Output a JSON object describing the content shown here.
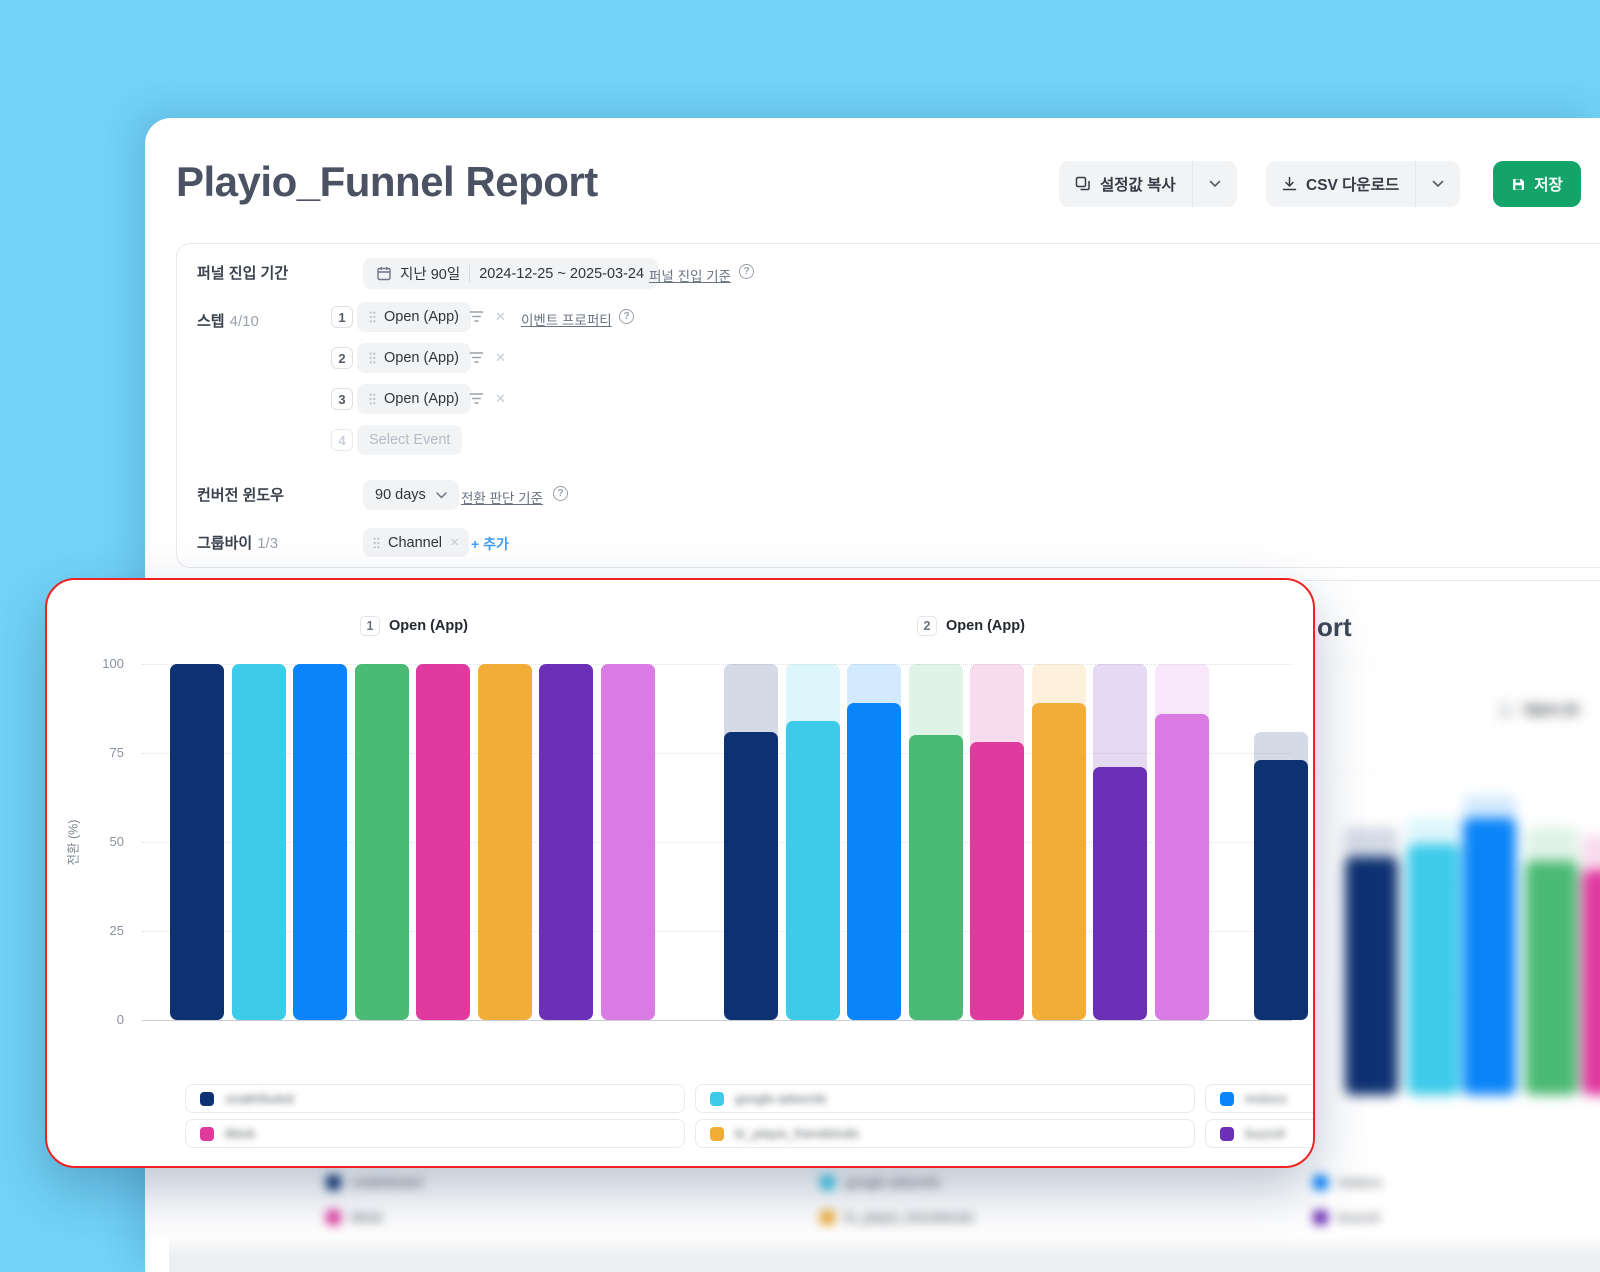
{
  "app": {
    "title": "Playio_Funnel Report"
  },
  "toolbar": {
    "copy_settings": "설정값 복사",
    "csv_download": "CSV 다운로드",
    "save": "저장"
  },
  "filters": {
    "period": {
      "label": "퍼널 진입 기간",
      "preset": "지난 90일",
      "range": "2024-12-25 ~ 2025-03-24",
      "criteria_link": "퍼널 진입 기준"
    },
    "steps": {
      "label": "스텝",
      "count": "4/10",
      "items": [
        {
          "num": "1",
          "event": "Open (App)",
          "property_link": "이벤트 프로퍼티",
          "placeholder": false
        },
        {
          "num": "2",
          "event": "Open (App)",
          "placeholder": false
        },
        {
          "num": "3",
          "event": "Open (App)",
          "placeholder": false
        },
        {
          "num": "4",
          "event": "Select Event",
          "placeholder": true
        }
      ]
    },
    "conversion": {
      "label": "컨버전 윈도우",
      "value": "90 days",
      "criteria_link": "전환 판단 기준"
    },
    "groupby": {
      "label": "그룹바이",
      "count": "1/3",
      "chip": "Channel",
      "add_link": "+ 추가"
    }
  },
  "chart_data": {
    "type": "bar",
    "ylabel": "전환 (%)",
    "ylim": [
      0,
      100
    ],
    "yticks": [
      100,
      75,
      50,
      25,
      0
    ],
    "grid": "horizontal-dotted",
    "legend_position": "bottom",
    "step_groups": [
      {
        "num": "1",
        "label": "Open (App)"
      },
      {
        "num": "2",
        "label": "Open (App)"
      }
    ],
    "channels": [
      {
        "name": "unattributed",
        "color": "#0E3172",
        "step1": 100,
        "step2": 81
      },
      {
        "name": "google.adwords",
        "color": "#3DCBEA",
        "step1": 100,
        "step2": 84
      },
      {
        "name": "moloco",
        "color": "#0A84F8",
        "step1": 100,
        "step2": 89
      },
      {
        "name": "",
        "color": "#4BBA74",
        "step1": 100,
        "step2": 80
      },
      {
        "name": "tiktok",
        "color": "#E03A9F",
        "step1": 100,
        "step2": 78
      },
      {
        "name": "kr_playio_friendsholic",
        "color": "#F1AD38",
        "step1": 100,
        "step2": 89
      },
      {
        "name": "buzzvil",
        "color": "#6B30B6",
        "step1": 100,
        "step2": 71
      },
      {
        "name": "",
        "color": "#D97BE3",
        "step1": 100,
        "step2": 86
      }
    ],
    "partial_step3": {
      "channel": "unattributed",
      "color": "#0E3172",
      "background_value": 81,
      "value": 73
    }
  },
  "legend": {
    "rows": [
      [
        {
          "label": "unattributed",
          "color": "#0E3172"
        },
        {
          "label": "google.adwords",
          "color": "#3DCBEA"
        },
        {
          "label": "moloco",
          "color": "#0A84F8"
        }
      ],
      [
        {
          "label": "tiktok",
          "color": "#E03A9F"
        },
        {
          "label": "kr_playio_friendsholic",
          "color": "#F1AD38"
        },
        {
          "label": "buzzvil",
          "color": "#6B30B6"
        }
      ]
    ]
  },
  "background_page": {
    "heading_fragment": "ort",
    "step3_header": {
      "num": "3",
      "label": "Open (A"
    },
    "preview_bars": [
      {
        "color": "#0E3172",
        "cap": 62,
        "value": 55
      },
      {
        "color": "#3DCBEA",
        "cap": 64,
        "value": 58
      },
      {
        "color": "#0A84F8",
        "cap": 69,
        "value": 64
      },
      {
        "color": "#4BBA74",
        "cap": 62,
        "value": 54
      },
      {
        "color": "#E03A9F",
        "cap": 60,
        "value": 52
      }
    ],
    "legend_rows": [
      [
        {
          "label": "unattributed",
          "color": "#0E3172"
        },
        {
          "label": "google.adwords",
          "color": "#3DCBEA"
        },
        {
          "label": "moloco",
          "color": "#0A84F8"
        }
      ],
      [
        {
          "label": "tiktok",
          "color": "#E03A9F"
        },
        {
          "label": "kr_playio_friendsholic",
          "color": "#F1AD38"
        },
        {
          "label": "buzzvil",
          "color": "#6B30B6"
        }
      ]
    ]
  },
  "colors": {
    "sky_background": "#73D3F8",
    "save_button": "#14A46A",
    "overlay_border": "#EF2222",
    "link_blue": "#3D9DF6"
  }
}
